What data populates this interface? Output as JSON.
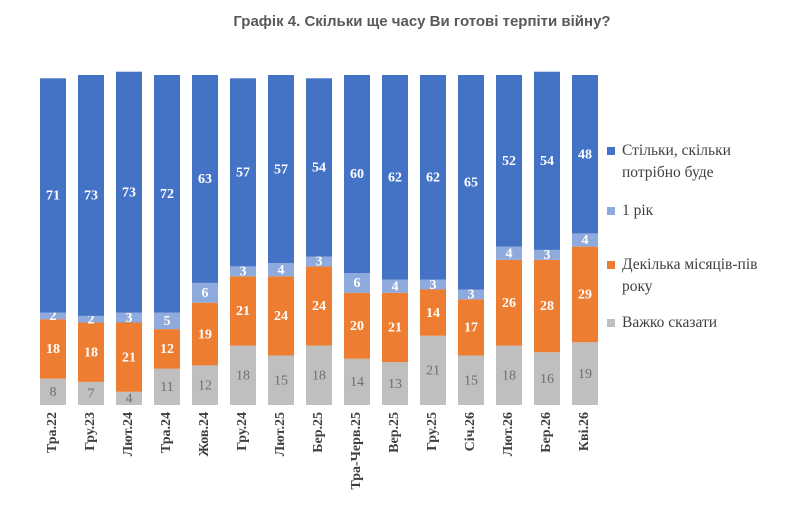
{
  "chart_data": {
    "type": "stacked-bar",
    "title": "Графік 4. Скільки ще часу Ви готові терпіти війну?",
    "categories": [
      "Тра.22",
      "Гру.23",
      "Лют.24",
      "Тра.24",
      "Жов.24",
      "Гру.24",
      "Лют.25",
      "Бер.25",
      "Тра-Черв.25",
      "Вер.25",
      "Гру.25",
      "Січ.26",
      "Лют.26",
      "Бер.26",
      "Кві.26"
    ],
    "series": [
      {
        "name": "Стільки, скільки потрібно буде",
        "color": "#4472c4",
        "values": [
          71,
          73,
          73,
          72,
          63,
          57,
          57,
          54,
          60,
          62,
          62,
          65,
          52,
          54,
          48
        ]
      },
      {
        "name": "1 рік",
        "color": "#8faadc",
        "values": [
          2,
          2,
          3,
          5,
          6,
          3,
          4,
          3,
          6,
          4,
          3,
          3,
          4,
          3,
          4
        ]
      },
      {
        "name": "Декілька місяців-пів року",
        "color": "#ed7d31",
        "values": [
          18,
          18,
          21,
          12,
          19,
          21,
          24,
          24,
          20,
          21,
          14,
          17,
          26,
          28,
          29
        ]
      },
      {
        "name": "Важко сказати",
        "color": "#bfbfbf",
        "values": [
          8,
          7,
          4,
          11,
          12,
          18,
          15,
          18,
          14,
          13,
          21,
          15,
          18,
          16,
          19
        ]
      }
    ],
    "legend": "right"
  }
}
